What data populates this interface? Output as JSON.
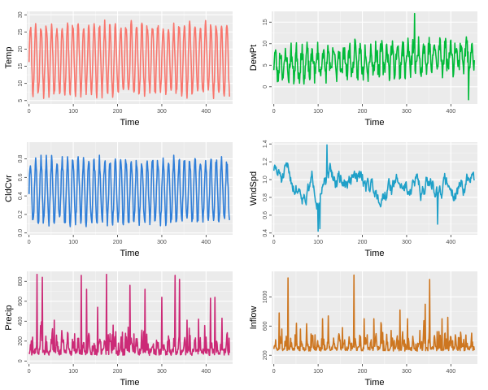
{
  "chart_data": [
    {
      "type": "line",
      "title": "",
      "xlabel": "Time",
      "ylabel": "Temp",
      "color": "#F8766D",
      "xlim": [
        -5,
        460
      ],
      "ylim": [
        4,
        31
      ],
      "xticks": [
        0,
        100,
        200,
        300,
        400
      ],
      "yticks": [
        5,
        10,
        15,
        20,
        25,
        30
      ],
      "pattern": {
        "kind": "seasonal",
        "n": 454,
        "base": 17,
        "amp": 10,
        "period": 12,
        "noise": 1.5,
        "seed": 11
      },
      "series": [
        {
          "name": "Temp"
        }
      ]
    },
    {
      "type": "line",
      "title": "",
      "xlabel": "Time",
      "ylabel": "DewPt",
      "color": "#00BA38",
      "xlim": [
        -5,
        460
      ],
      "ylim": [
        -4,
        17.5
      ],
      "xticks": [
        0,
        100,
        200,
        300,
        400
      ],
      "yticks": [
        0,
        5,
        10,
        15
      ],
      "pattern": {
        "kind": "seasonal",
        "n": 454,
        "base": 5,
        "amp": 3,
        "period": 12,
        "noise": 2.2,
        "trend": 2.5,
        "seed": 23,
        "spikes": [
          [
            318,
            17
          ],
          [
            440,
            -3
          ]
        ]
      },
      "series": [
        {
          "name": "DewPt"
        }
      ]
    },
    {
      "type": "line",
      "title": "",
      "xlabel": "Time",
      "ylabel": "CldCvr",
      "color": "#2F7ED8",
      "xlim": [
        -5,
        460
      ],
      "ylim": [
        -0.02,
        0.98
      ],
      "xticks": [
        0,
        100,
        200,
        300,
        400
      ],
      "yticks": [
        0.0,
        0.2,
        0.4,
        0.6,
        0.8
      ],
      "pattern": {
        "kind": "seasonal",
        "n": 454,
        "base": 0.45,
        "amp": 0.33,
        "period": 12,
        "noise": 0.06,
        "seed": 37
      },
      "series": [
        {
          "name": "CldCvr"
        }
      ]
    },
    {
      "type": "line",
      "title": "",
      "xlabel": "Time",
      "ylabel": "WndSpd",
      "color": "#1FA0C8",
      "xlim": [
        -5,
        460
      ],
      "ylim": [
        0.38,
        1.42
      ],
      "xticks": [
        0,
        100,
        200,
        300,
        400
      ],
      "yticks": [
        0.4,
        0.6,
        0.8,
        1.0,
        1.2,
        1.4
      ],
      "pattern": {
        "kind": "wander",
        "n": 454,
        "start": 1.15,
        "mean": 0.95,
        "revert": 0.08,
        "step": 0.07,
        "seed": 51,
        "min": 0.45,
        "max": 1.38,
        "spikes": [
          [
            100,
            0.42
          ],
          [
            104,
            0.45
          ],
          [
            120,
            1.39
          ],
          [
            370,
            0.5
          ]
        ]
      },
      "series": [
        {
          "name": "WndSpd"
        }
      ]
    },
    {
      "type": "line",
      "title": "",
      "xlabel": "Time",
      "ylabel": "Precip",
      "color": "#CC2A77",
      "xlim": [
        -5,
        460
      ],
      "ylim": [
        -30,
        900
      ],
      "xticks": [
        0,
        100,
        200,
        300,
        400
      ],
      "yticks": [
        0,
        200,
        400,
        600,
        800
      ],
      "pattern": {
        "kind": "spiky",
        "n": 454,
        "base": 90,
        "noise": 110,
        "period": 12,
        "seed": 67,
        "min": 0,
        "spikes": [
          [
            8,
            240
          ],
          [
            18,
            870
          ],
          [
            30,
            840
          ],
          [
            57,
            410
          ],
          [
            118,
            860
          ],
          [
            130,
            720
          ],
          [
            155,
            540
          ],
          [
            175,
            870
          ],
          [
            190,
            360
          ],
          [
            228,
            760
          ],
          [
            262,
            720
          ],
          [
            300,
            640
          ],
          [
            330,
            860
          ],
          [
            340,
            820
          ],
          [
            357,
            410
          ],
          [
            383,
            420
          ],
          [
            410,
            630
          ],
          [
            420,
            640
          ],
          [
            452,
            230
          ]
        ]
      },
      "series": [
        {
          "name": "Precip"
        }
      ]
    },
    {
      "type": "line",
      "title": "",
      "xlabel": "Time",
      "ylabel": "Inflow",
      "color": "#CD7620",
      "xlim": [
        -5,
        460
      ],
      "ylim": [
        80,
        1350
      ],
      "xticks": [
        0,
        100,
        200,
        300,
        400
      ],
      "yticks": [
        200,
        600,
        1000
      ],
      "pattern": {
        "kind": "spiky",
        "n": 454,
        "base": 290,
        "noise": 110,
        "period": 12,
        "seed": 79,
        "min": 120,
        "spikes": [
          [
            5,
            300
          ],
          [
            12,
            780
          ],
          [
            18,
            560
          ],
          [
            32,
            1260
          ],
          [
            60,
            560
          ],
          [
            93,
            480
          ],
          [
            110,
            700
          ],
          [
            123,
            740
          ],
          [
            155,
            580
          ],
          [
            181,
            1300
          ],
          [
            204,
            700
          ],
          [
            226,
            700
          ],
          [
            243,
            620
          ],
          [
            265,
            540
          ],
          [
            278,
            430
          ],
          [
            285,
            820
          ],
          [
            302,
            700
          ],
          [
            330,
            540
          ],
          [
            342,
            900
          ],
          [
            352,
            1240
          ],
          [
            380,
            700
          ],
          [
            393,
            720
          ],
          [
            410,
            480
          ],
          [
            420,
            440
          ]
        ]
      },
      "series": [
        {
          "name": "Inflow"
        }
      ]
    }
  ]
}
